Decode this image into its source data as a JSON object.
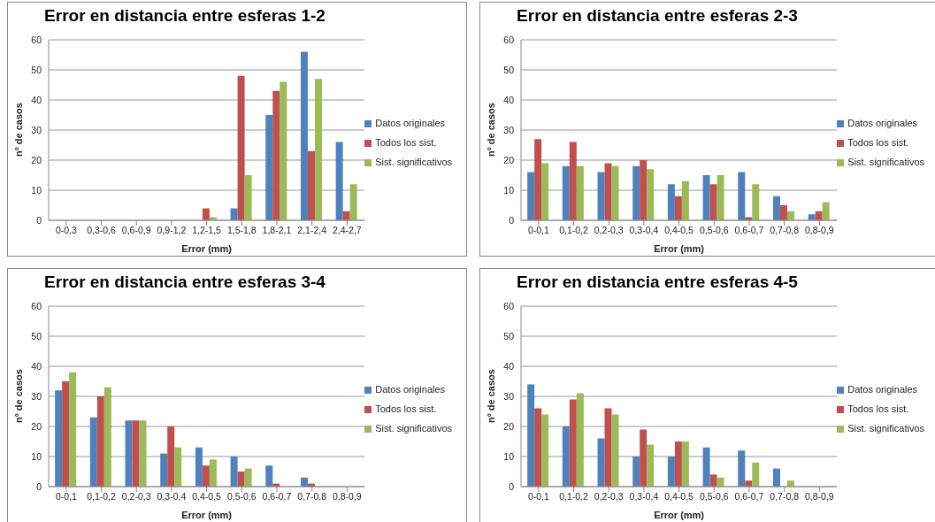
{
  "chart_data": [
    {
      "type": "bar",
      "title": "Error en distancia entre esferas 1-2",
      "xlabel": "Error (mm)",
      "ylabel": "nº de casos",
      "categories": [
        "0-0,3",
        "0,3-0,6",
        "0,6-0,9",
        "0,9-1,2",
        "1,2-1,5",
        "1,5-1,8",
        "1,8-2,1",
        "2,1-2,4",
        "2,4-2,7"
      ],
      "series": [
        {
          "name": "Datos originales",
          "color": "#4f81bd",
          "values": [
            0,
            0,
            0,
            0,
            0,
            4,
            35,
            56,
            26
          ]
        },
        {
          "name": "Todos los sist.",
          "color": "#c0504d",
          "values": [
            0,
            0,
            0,
            0,
            4,
            48,
            43,
            23,
            3
          ]
        },
        {
          "name": "Sist. significativos",
          "color": "#9bbb59",
          "values": [
            0,
            0,
            0,
            0,
            1,
            15,
            46,
            47,
            12
          ]
        }
      ],
      "ylim": [
        0,
        60
      ],
      "yticks": [
        0,
        10,
        20,
        30,
        40,
        50,
        60
      ],
      "grid": "y",
      "legend": "right"
    },
    {
      "type": "bar",
      "title": "Error en distancia entre esferas 2-3",
      "xlabel": "Error (mm)",
      "ylabel": "nº de casos",
      "categories": [
        "0-0,1",
        "0,1-0,2",
        "0,2-0,3",
        "0,3-0,4",
        "0,4-0,5",
        "0,5-0,6",
        "0,6-0,7",
        "0,7-0,8",
        "0,8-0,9"
      ],
      "series": [
        {
          "name": "Datos originales",
          "color": "#4f81bd",
          "values": [
            16,
            18,
            16,
            18,
            12,
            15,
            16,
            8,
            2
          ]
        },
        {
          "name": "Todos los sist.",
          "color": "#c0504d",
          "values": [
            27,
            26,
            19,
            20,
            8,
            12,
            1,
            5,
            3
          ]
        },
        {
          "name": "Sist. significativos",
          "color": "#9bbb59",
          "values": [
            19,
            18,
            18,
            17,
            13,
            15,
            12,
            3,
            6
          ]
        }
      ],
      "ylim": [
        0,
        60
      ],
      "yticks": [
        0,
        10,
        20,
        30,
        40,
        50,
        60
      ],
      "grid": "y",
      "legend": "right"
    },
    {
      "type": "bar",
      "title": "Error en distancia entre esferas 3-4",
      "xlabel": "Error (mm)",
      "ylabel": "nº de casos",
      "categories": [
        "0-0,1",
        "0,1-0,2",
        "0,2-0,3",
        "0,3-0,4",
        "0,4-0,5",
        "0,5-0,6",
        "0,6-0,7",
        "0,7-0,8",
        "0,8-0,9"
      ],
      "series": [
        {
          "name": "Datos originales",
          "color": "#4f81bd",
          "values": [
            32,
            23,
            22,
            11,
            13,
            10,
            7,
            3,
            0
          ]
        },
        {
          "name": "Todos los sist.",
          "color": "#c0504d",
          "values": [
            35,
            30,
            22,
            20,
            7,
            5,
            1,
            1,
            0
          ]
        },
        {
          "name": "Sist. significativos",
          "color": "#9bbb59",
          "values": [
            38,
            33,
            22,
            13,
            9,
            6,
            0,
            0,
            0
          ]
        }
      ],
      "ylim": [
        0,
        60
      ],
      "yticks": [
        0,
        10,
        20,
        30,
        40,
        50,
        60
      ],
      "grid": "y",
      "legend": "right"
    },
    {
      "type": "bar",
      "title": "Error en distancia entre esferas 4-5",
      "xlabel": "Error (mm)",
      "ylabel": "nº de casos",
      "categories": [
        "0-0,1",
        "0,1-0,2",
        "0,2-0,3",
        "0,3-0,4",
        "0,4-0,5",
        "0,5-0,6",
        "0,6-0,7",
        "0,7-0,8",
        "0,8-0,9"
      ],
      "series": [
        {
          "name": "Datos originales",
          "color": "#4f81bd",
          "values": [
            34,
            20,
            16,
            10,
            10,
            13,
            12,
            6,
            0
          ]
        },
        {
          "name": "Todos los sist.",
          "color": "#c0504d",
          "values": [
            26,
            29,
            26,
            19,
            15,
            4,
            2,
            0,
            0
          ]
        },
        {
          "name": "Sist. significativos",
          "color": "#9bbb59",
          "values": [
            24,
            31,
            24,
            14,
            15,
            3,
            8,
            2,
            0
          ]
        }
      ],
      "ylim": [
        0,
        60
      ],
      "yticks": [
        0,
        10,
        20,
        30,
        40,
        50,
        60
      ],
      "grid": "y",
      "legend": "right"
    }
  ]
}
